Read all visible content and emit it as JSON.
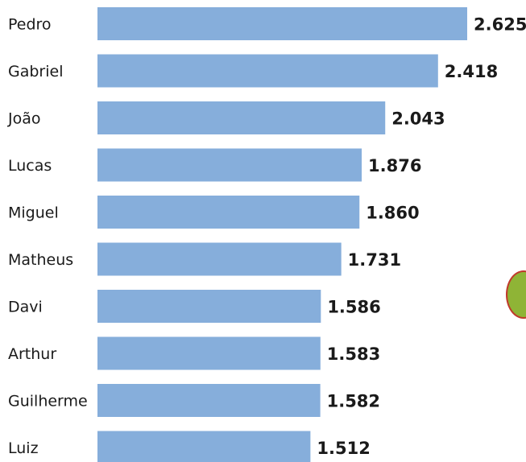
{
  "chart_data": {
    "type": "bar",
    "orientation": "horizontal",
    "categories": [
      "Pedro",
      "Gabriel",
      "João",
      "Lucas",
      "Miguel",
      "Matheus",
      "Davi",
      "Arthur",
      "Guilherme",
      "Luiz"
    ],
    "values": [
      2625,
      2418,
      2043,
      1876,
      1860,
      1731,
      1586,
      1583,
      1582,
      1512
    ],
    "value_labels": [
      "2.625",
      "2.418",
      "2.043",
      "1.876",
      "1.860",
      "1.731",
      "1.586",
      "1.583",
      "1.582",
      "1.512"
    ],
    "title": "",
    "xlabel": "",
    "ylabel": "",
    "xlim": [
      0,
      2625
    ],
    "grid": false,
    "colors": {
      "bar": "#86aedb",
      "text": "#1a1a1a"
    }
  }
}
